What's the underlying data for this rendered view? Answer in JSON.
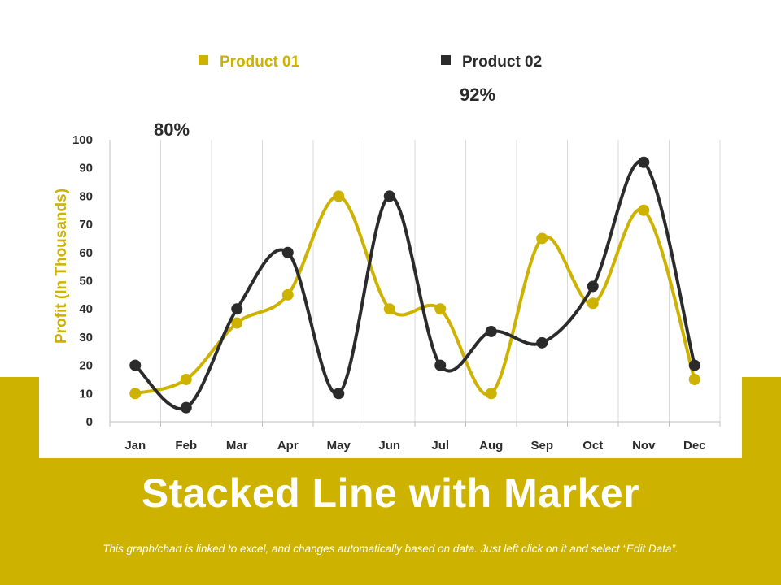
{
  "theme": {
    "accent": "#CDB200",
    "dark": "#2B2B2B",
    "grid": "#D9D9D9",
    "background": "#FFFFFF"
  },
  "slide": {
    "title": "Stacked Line with Marker",
    "footnote": "This graph/chart is linked to excel, and changes automatically based on data. Just left click on it and select “Edit Data”."
  },
  "chart_data": {
    "type": "line",
    "smooth": true,
    "markers": true,
    "categories": [
      "Jan",
      "Feb",
      "Mar",
      "Apr",
      "May",
      "Jun",
      "Jul",
      "Aug",
      "Sep",
      "Oct",
      "Nov",
      "Dec"
    ],
    "series": [
      {
        "name": "Product 01",
        "color": "#CDB200",
        "values": [
          10,
          15,
          35,
          45,
          80,
          40,
          40,
          10,
          65,
          42,
          75,
          15
        ]
      },
      {
        "name": "Product 02",
        "color": "#2B2B2B",
        "values": [
          20,
          5,
          40,
          60,
          10,
          80,
          20,
          32,
          28,
          48,
          92,
          20
        ]
      }
    ],
    "ylabel": "Profit (In Thousands)",
    "ylim": [
      0,
      100
    ],
    "yticks": [
      0,
      10,
      20,
      30,
      40,
      50,
      60,
      70,
      80,
      90,
      100
    ],
    "grid": {
      "vertical": true,
      "horizontal": false
    },
    "legend": "top",
    "annotations": [
      {
        "text": "80%",
        "series": 0,
        "category": "May"
      },
      {
        "text": "92%",
        "series": 1,
        "category": "Nov"
      }
    ]
  }
}
